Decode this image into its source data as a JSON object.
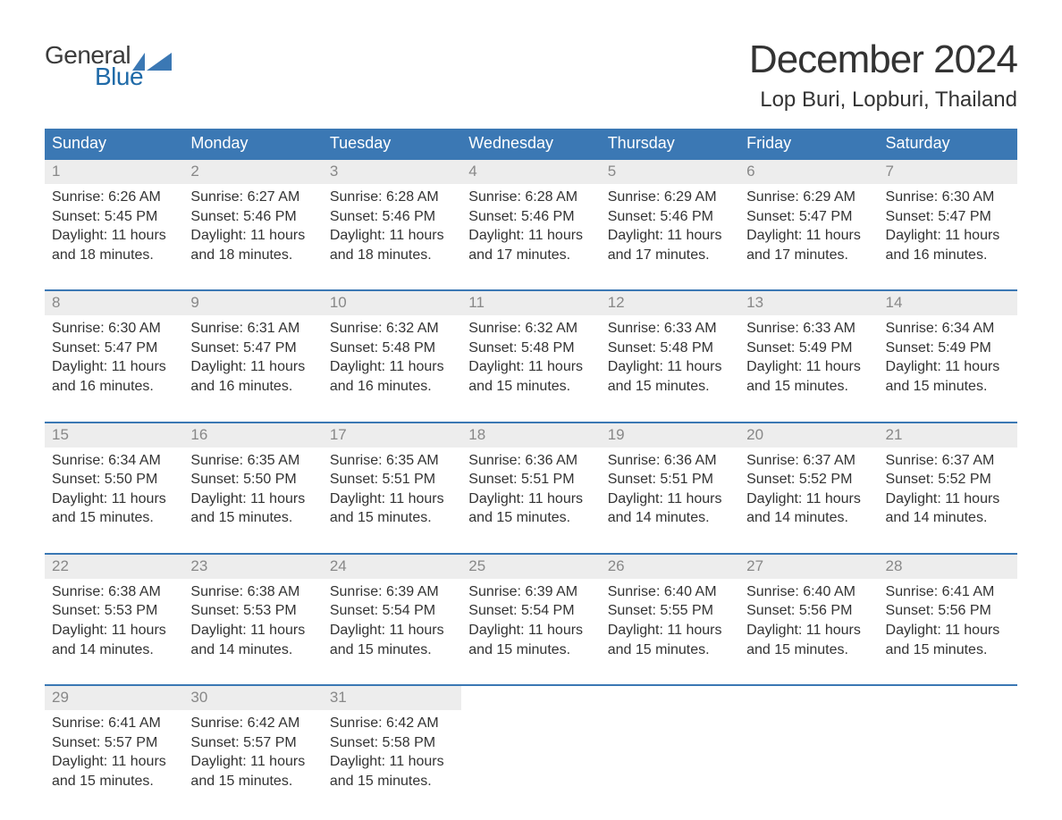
{
  "logo": {
    "line1": "General",
    "line2": "Blue"
  },
  "title": "December 2024",
  "location": "Lop Buri, Lopburi, Thailand",
  "colors": {
    "header_blue": "#3b78b4",
    "blue_text": "#1f6aa8",
    "grey_row": "#ededed",
    "text": "#333333",
    "background": "#ffffff"
  },
  "days_header": [
    "Sunday",
    "Monday",
    "Tuesday",
    "Wednesday",
    "Thursday",
    "Friday",
    "Saturday"
  ],
  "labels": {
    "sunrise": "Sunrise",
    "sunset": "Sunset",
    "daylight": "Daylight"
  },
  "weeks": [
    [
      {
        "day": "1",
        "sunrise": "6:26 AM",
        "sunset": "5:45 PM",
        "daylight": "11 hours and 18 minutes."
      },
      {
        "day": "2",
        "sunrise": "6:27 AM",
        "sunset": "5:46 PM",
        "daylight": "11 hours and 18 minutes."
      },
      {
        "day": "3",
        "sunrise": "6:28 AM",
        "sunset": "5:46 PM",
        "daylight": "11 hours and 18 minutes."
      },
      {
        "day": "4",
        "sunrise": "6:28 AM",
        "sunset": "5:46 PM",
        "daylight": "11 hours and 17 minutes."
      },
      {
        "day": "5",
        "sunrise": "6:29 AM",
        "sunset": "5:46 PM",
        "daylight": "11 hours and 17 minutes."
      },
      {
        "day": "6",
        "sunrise": "6:29 AM",
        "sunset": "5:47 PM",
        "daylight": "11 hours and 17 minutes."
      },
      {
        "day": "7",
        "sunrise": "6:30 AM",
        "sunset": "5:47 PM",
        "daylight": "11 hours and 16 minutes."
      }
    ],
    [
      {
        "day": "8",
        "sunrise": "6:30 AM",
        "sunset": "5:47 PM",
        "daylight": "11 hours and 16 minutes."
      },
      {
        "day": "9",
        "sunrise": "6:31 AM",
        "sunset": "5:47 PM",
        "daylight": "11 hours and 16 minutes."
      },
      {
        "day": "10",
        "sunrise": "6:32 AM",
        "sunset": "5:48 PM",
        "daylight": "11 hours and 16 minutes."
      },
      {
        "day": "11",
        "sunrise": "6:32 AM",
        "sunset": "5:48 PM",
        "daylight": "11 hours and 15 minutes."
      },
      {
        "day": "12",
        "sunrise": "6:33 AM",
        "sunset": "5:48 PM",
        "daylight": "11 hours and 15 minutes."
      },
      {
        "day": "13",
        "sunrise": "6:33 AM",
        "sunset": "5:49 PM",
        "daylight": "11 hours and 15 minutes."
      },
      {
        "day": "14",
        "sunrise": "6:34 AM",
        "sunset": "5:49 PM",
        "daylight": "11 hours and 15 minutes."
      }
    ],
    [
      {
        "day": "15",
        "sunrise": "6:34 AM",
        "sunset": "5:50 PM",
        "daylight": "11 hours and 15 minutes."
      },
      {
        "day": "16",
        "sunrise": "6:35 AM",
        "sunset": "5:50 PM",
        "daylight": "11 hours and 15 minutes."
      },
      {
        "day": "17",
        "sunrise": "6:35 AM",
        "sunset": "5:51 PM",
        "daylight": "11 hours and 15 minutes."
      },
      {
        "day": "18",
        "sunrise": "6:36 AM",
        "sunset": "5:51 PM",
        "daylight": "11 hours and 15 minutes."
      },
      {
        "day": "19",
        "sunrise": "6:36 AM",
        "sunset": "5:51 PM",
        "daylight": "11 hours and 14 minutes."
      },
      {
        "day": "20",
        "sunrise": "6:37 AM",
        "sunset": "5:52 PM",
        "daylight": "11 hours and 14 minutes."
      },
      {
        "day": "21",
        "sunrise": "6:37 AM",
        "sunset": "5:52 PM",
        "daylight": "11 hours and 14 minutes."
      }
    ],
    [
      {
        "day": "22",
        "sunrise": "6:38 AM",
        "sunset": "5:53 PM",
        "daylight": "11 hours and 14 minutes."
      },
      {
        "day": "23",
        "sunrise": "6:38 AM",
        "sunset": "5:53 PM",
        "daylight": "11 hours and 14 minutes."
      },
      {
        "day": "24",
        "sunrise": "6:39 AM",
        "sunset": "5:54 PM",
        "daylight": "11 hours and 15 minutes."
      },
      {
        "day": "25",
        "sunrise": "6:39 AM",
        "sunset": "5:54 PM",
        "daylight": "11 hours and 15 minutes."
      },
      {
        "day": "26",
        "sunrise": "6:40 AM",
        "sunset": "5:55 PM",
        "daylight": "11 hours and 15 minutes."
      },
      {
        "day": "27",
        "sunrise": "6:40 AM",
        "sunset": "5:56 PM",
        "daylight": "11 hours and 15 minutes."
      },
      {
        "day": "28",
        "sunrise": "6:41 AM",
        "sunset": "5:56 PM",
        "daylight": "11 hours and 15 minutes."
      }
    ],
    [
      {
        "day": "29",
        "sunrise": "6:41 AM",
        "sunset": "5:57 PM",
        "daylight": "11 hours and 15 minutes."
      },
      {
        "day": "30",
        "sunrise": "6:42 AM",
        "sunset": "5:57 PM",
        "daylight": "11 hours and 15 minutes."
      },
      {
        "day": "31",
        "sunrise": "6:42 AM",
        "sunset": "5:58 PM",
        "daylight": "11 hours and 15 minutes."
      },
      null,
      null,
      null,
      null
    ]
  ]
}
